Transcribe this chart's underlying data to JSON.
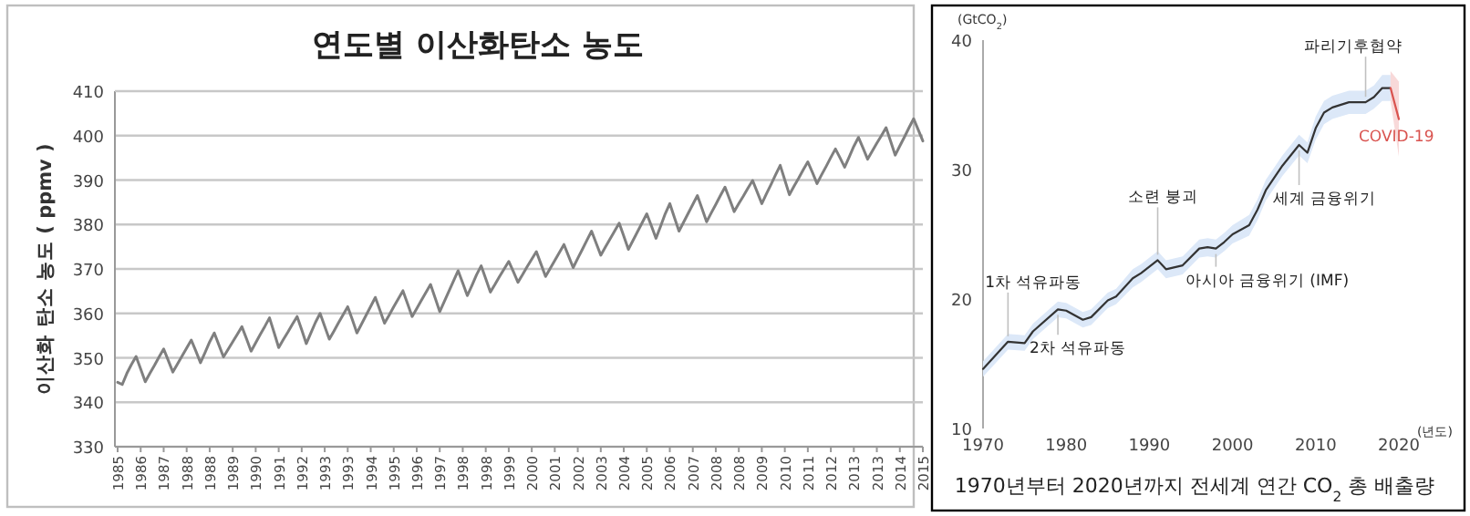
{
  "chart_data": [
    {
      "type": "line",
      "title": "연도별 이산화탄소 농도",
      "ylabel": "이산화 탄소 농도 ( ppmv )",
      "grid": "y",
      "ylim": [
        330,
        410
      ],
      "yticks": [
        330,
        340,
        350,
        360,
        370,
        380,
        390,
        400,
        410
      ],
      "categories": [
        "1985",
        null,
        null,
        null,
        null,
        "1986",
        null,
        null,
        null,
        null,
        "1987",
        null,
        null,
        null,
        null,
        "1988",
        null,
        null,
        null,
        null,
        "1988",
        null,
        null,
        null,
        null,
        "1989",
        null,
        null,
        null,
        null,
        "1990",
        null,
        null,
        null,
        null,
        "1991",
        null,
        null,
        null,
        null,
        "1992",
        null,
        null,
        null,
        null,
        "1993",
        null,
        null,
        null,
        null,
        "1993",
        null,
        null,
        null,
        null,
        "1994",
        null,
        null,
        null,
        null,
        "1995",
        null,
        null,
        null,
        null,
        "1996",
        null,
        null,
        null,
        null,
        "1997",
        null,
        null,
        null,
        null,
        "1998",
        null,
        null,
        null,
        null,
        "1998",
        null,
        null,
        null,
        null,
        "1999",
        null,
        null,
        null,
        null,
        "2000",
        null,
        null,
        null,
        null,
        "2001",
        null,
        null,
        null,
        null,
        "2002",
        null,
        null,
        null,
        null,
        "2003",
        null,
        null,
        null,
        null,
        "2004",
        null,
        null,
        null,
        null,
        "2005",
        null,
        null,
        null,
        null,
        "2006",
        null,
        null,
        null,
        null,
        "2007",
        null,
        null,
        null,
        null,
        "2008",
        null,
        null,
        null,
        null,
        "2008",
        null,
        null,
        null,
        null,
        "2009",
        null,
        null,
        null,
        null,
        "2010",
        null,
        null,
        null,
        null,
        "2011",
        null,
        null,
        null,
        null,
        "2012",
        null,
        null,
        null,
        null,
        "2013",
        null,
        null,
        null,
        null,
        "2013",
        null,
        null,
        null,
        null,
        "2014",
        null,
        null,
        null,
        null,
        "2015"
      ],
      "series": [
        {
          "color": "#7f7f7f",
          "values": [
            344.5,
            344,
            346.5,
            348.5,
            350.3,
            347.5,
            344.6,
            346.5,
            348.3,
            350.2,
            352,
            349.4,
            346.8,
            348.6,
            350.4,
            352.2,
            354,
            351.5,
            348.9,
            351.2,
            353.6,
            355.6,
            352.9,
            350.2,
            351.9,
            353.6,
            355.3,
            357,
            354.3,
            351.5,
            353.4,
            355.3,
            357.1,
            359,
            355.7,
            352.3,
            354.1,
            355.8,
            357.6,
            359.3,
            356.3,
            353.2,
            355.6,
            358,
            360,
            357.1,
            354.2,
            356,
            357.9,
            359.7,
            361.5,
            358.6,
            355.6,
            357.6,
            359.6,
            361.6,
            363.6,
            360.7,
            357.8,
            359.6,
            361.5,
            363.3,
            365.1,
            362.2,
            359.3,
            361.1,
            362.9,
            364.7,
            366.5,
            363.5,
            360.4,
            362.7,
            365,
            367.3,
            369.6,
            366.8,
            364,
            366.3,
            368.7,
            370.7,
            367.8,
            364.8,
            366.5,
            368.3,
            370,
            371.7,
            369.4,
            367,
            368.7,
            370.5,
            372.2,
            373.9,
            371.1,
            368.3,
            370.1,
            371.9,
            373.7,
            375.5,
            372.9,
            370.3,
            372.4,
            374.4,
            376.5,
            378.5,
            375.8,
            373.1,
            374.9,
            376.7,
            378.5,
            380.3,
            377.4,
            374.4,
            376.4,
            378.4,
            380.4,
            382.4,
            379.7,
            376.9,
            379.6,
            382.4,
            384.7,
            381.6,
            378.5,
            380.5,
            382.5,
            384.5,
            386.5,
            383.6,
            380.6,
            382.6,
            384.5,
            386.5,
            388.4,
            385.7,
            382.9,
            384.7,
            386.4,
            388.2,
            389.9,
            387.3,
            384.7,
            386.9,
            389,
            391.2,
            393.3,
            390,
            386.7,
            388.6,
            390.4,
            392.3,
            394.1,
            391.7,
            389.2,
            391.2,
            393.1,
            395.1,
            397,
            395,
            392.9,
            395.2,
            397.6,
            399.6,
            397.2,
            394.7,
            396.5,
            398.3,
            400,
            401.8,
            398.7,
            395.6,
            397.7,
            399.7,
            401.8,
            403.8,
            401.3,
            398.8
          ]
        }
      ]
    },
    {
      "type": "line",
      "title": "1970년부터 2020년까지 전세계 연간 CO$_{2}$ 총 배출량",
      "ylabel": "(GtCO$_{2}$)",
      "xlabel": "(년도)",
      "xlim": [
        1970,
        2020
      ],
      "xticks": [
        1970,
        1980,
        1990,
        2000,
        2010,
        2020
      ],
      "ylim": [
        10,
        40
      ],
      "yticks": [
        10,
        20,
        30,
        40
      ],
      "series": [
        {
          "color": "#333333",
          "x": [
            1970,
            1973,
            1975,
            1976,
            1979,
            1980,
            1982,
            1983,
            1985,
            1986,
            1988,
            1989,
            1991,
            1992,
            1994,
            1996,
            1997,
            1998,
            1999,
            2000,
            2002,
            2003,
            2004,
            2006,
            2008,
            2009,
            2010,
            2011,
            2012,
            2014,
            2016,
            2017,
            2018,
            2019
          ],
          "values": [
            14.6,
            16.7,
            16.6,
            17.5,
            19.2,
            19.1,
            18.4,
            18.6,
            19.9,
            20.2,
            21.6,
            22,
            23,
            22.3,
            22.6,
            23.9,
            24,
            23.9,
            24.4,
            25,
            25.7,
            26.9,
            28.4,
            30.3,
            31.9,
            31.3,
            33.2,
            34.4,
            34.8,
            35.2,
            35.2,
            35.6,
            36.3,
            36.3
          ],
          "lower": [
            14,
            16.1,
            16,
            16.9,
            18.6,
            18.5,
            17.8,
            18,
            19.3,
            19.6,
            20.9,
            21.3,
            22.3,
            21.6,
            21.9,
            23.2,
            23.3,
            23.2,
            23.7,
            24.3,
            24.9,
            26.1,
            27.6,
            29.5,
            31.1,
            30.5,
            32.3,
            33.5,
            33.9,
            34.3,
            34.3,
            34.7,
            35.3,
            35.3
          ],
          "upper": [
            15.2,
            17.3,
            17.2,
            18.1,
            19.8,
            19.7,
            19,
            19.2,
            20.5,
            20.8,
            22.3,
            22.7,
            23.7,
            23,
            23.3,
            24.6,
            24.7,
            24.6,
            25.1,
            25.7,
            26.5,
            27.7,
            29.2,
            31.1,
            32.7,
            32.1,
            34.1,
            35.3,
            35.7,
            36.1,
            36.1,
            36.5,
            37.3,
            37.3
          ]
        },
        {
          "color": "#d9534f",
          "x": [
            2019,
            2020
          ],
          "values": [
            36.3,
            33.9
          ],
          "lower": [
            35.3,
            31
          ],
          "upper": [
            37.6,
            36.8
          ]
        }
      ],
      "annotations": [
        {
          "text": "1차 석유파동",
          "x": 1973,
          "y": 16.7
        },
        {
          "text": "2차 석유파동",
          "x": 1979,
          "y": 19.2
        },
        {
          "text": "소련 붕괴",
          "x": 1991,
          "y": 23
        },
        {
          "text": "아시아 금융위기 (IMF)",
          "x": 1998,
          "y": 23.9
        },
        {
          "text": "세계 금융위기",
          "x": 2008,
          "y": 31.9
        },
        {
          "text": "파리기후협약",
          "x": 2016,
          "y": 35.2
        },
        {
          "text": "COVID-19",
          "x": 2020,
          "y": 33.9
        }
      ]
    }
  ]
}
